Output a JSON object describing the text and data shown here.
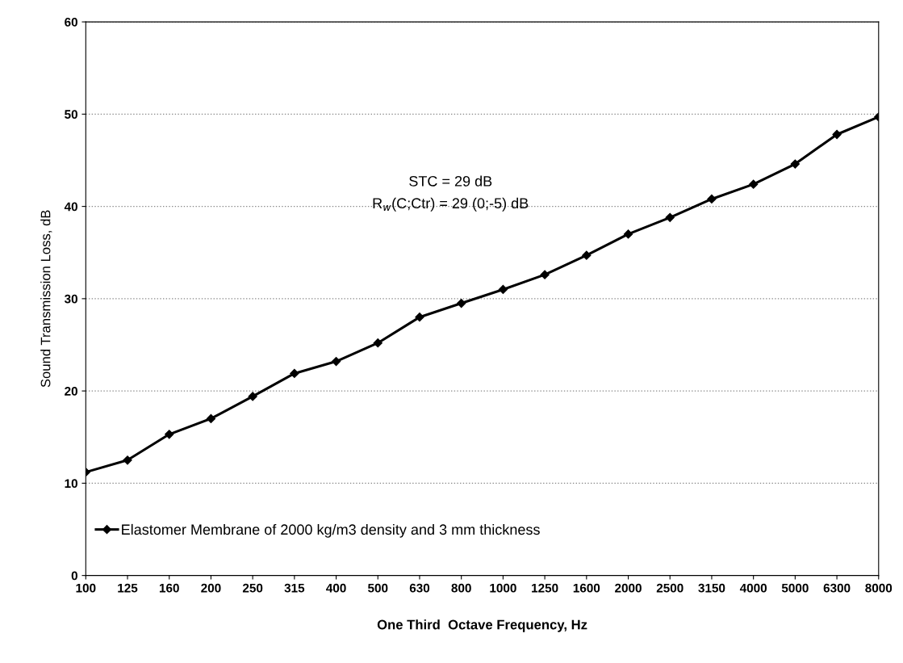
{
  "chart_data": {
    "type": "line",
    "xlabel": "One Third  Octave Frequency, Hz",
    "ylabel": "Sound Transmission Loss, dB",
    "categories": [
      "100",
      "125",
      "160",
      "200",
      "250",
      "315",
      "400",
      "500",
      "630",
      "800",
      "1000",
      "1250",
      "1600",
      "2000",
      "2500",
      "3150",
      "4000",
      "5000",
      "6300",
      "8000"
    ],
    "series": [
      {
        "name": "Elastomer Membrane of 2000 kg/m3 density and 3 mm thickness",
        "color": "#000000",
        "values": [
          11.2,
          12.5,
          15.3,
          17,
          19.4,
          21.9,
          23.2,
          25.2,
          28,
          29.5,
          31,
          32.6,
          34.7,
          37,
          38.8,
          40.8,
          42.4,
          44.6,
          47.8,
          49.7
        ]
      }
    ],
    "annotations": [
      "STC = 29 dB",
      "R$_{w}$(C;Ctr) = 29 (0;-5) dB"
    ],
    "ylim": [
      0,
      60
    ],
    "yticks": [
      0,
      10,
      20,
      30,
      40,
      50,
      60
    ],
    "grid": "y",
    "legend": "bottom left",
    "marker": "diamond",
    "line_style": "solid"
  }
}
